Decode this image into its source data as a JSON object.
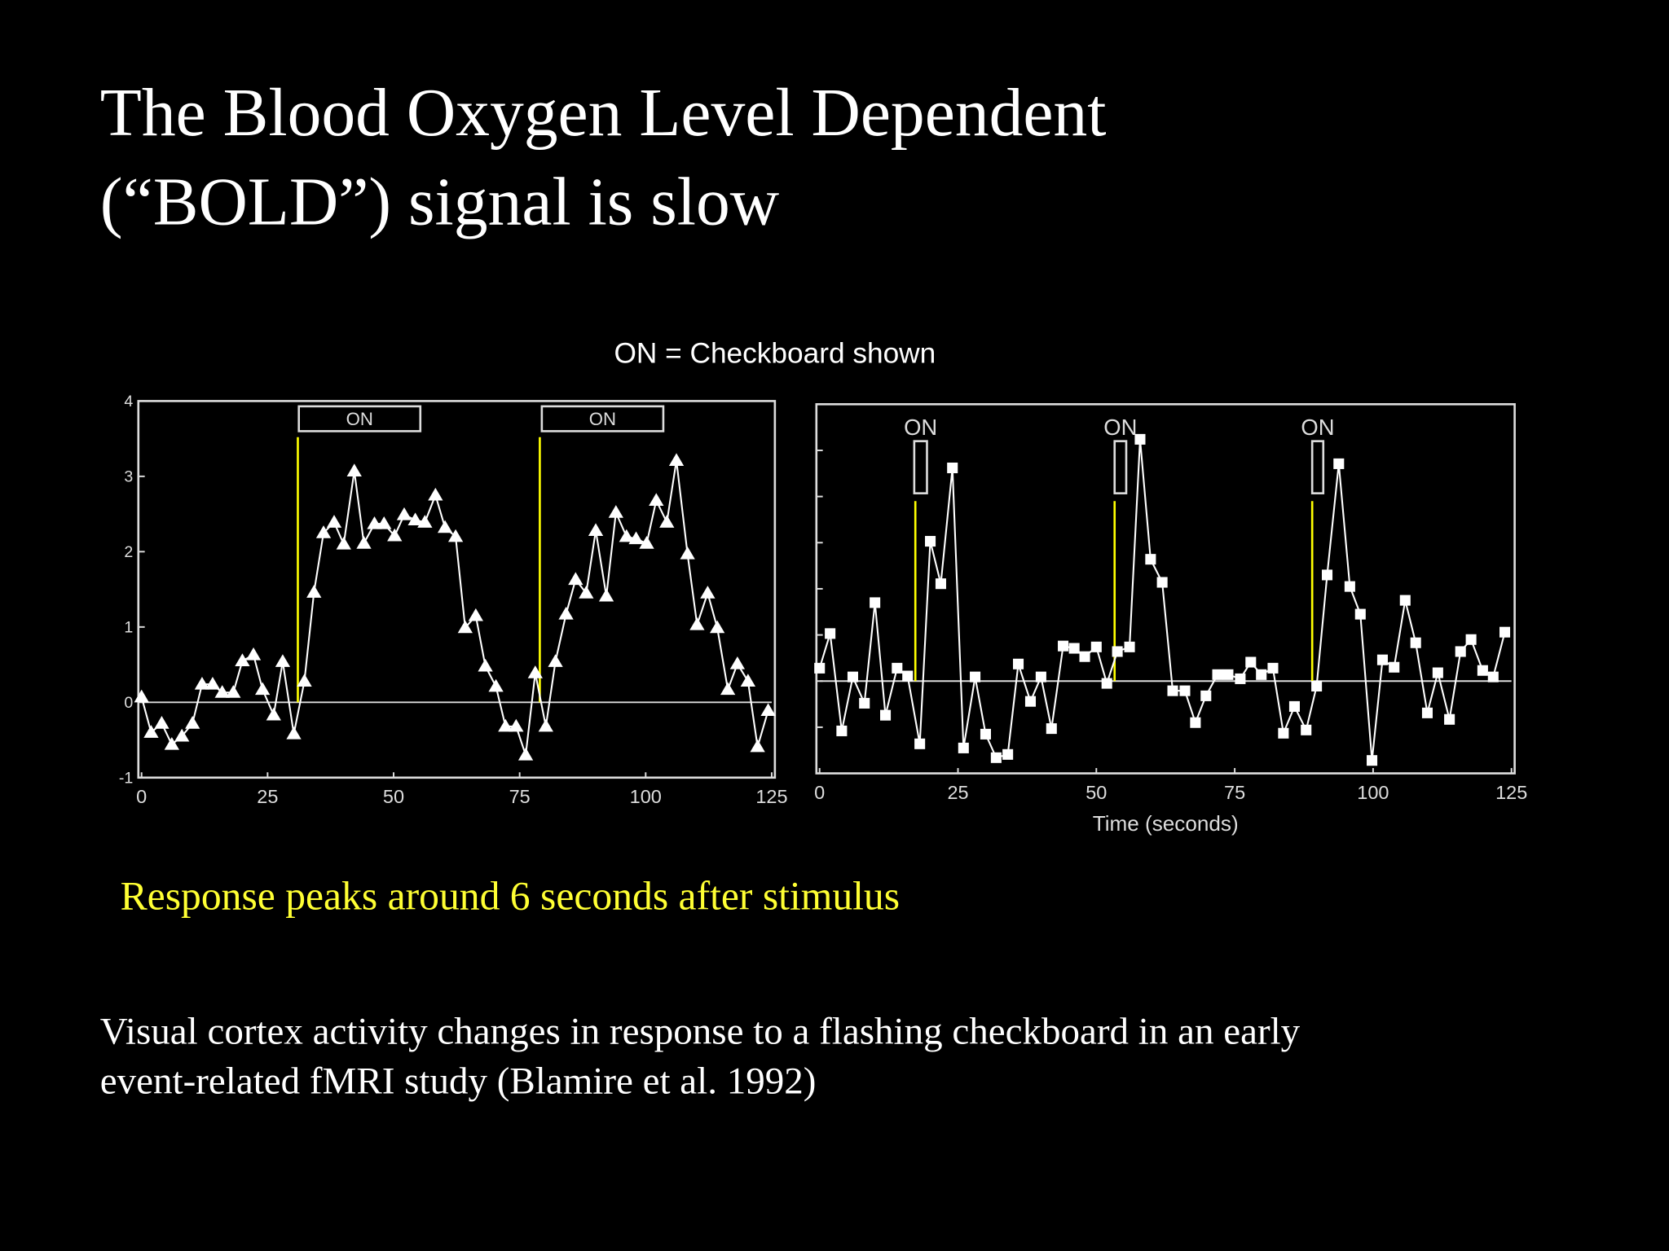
{
  "slide": {
    "title": [
      "The Blood Oxygen Level Dependent",
      "(“BOLD”) signal is slow"
    ],
    "note": "ON = Checkboard shown",
    "caption": "Response peaks around 6 seconds after stimulus",
    "footnote": [
      "Visual cortex activity changes in response to a flashing checkboard in an early",
      "event-related fMRI study (Blamire et al. 1992)"
    ]
  },
  "chart_data": [
    {
      "type": "line",
      "marker": "triangle",
      "color": "#ffffff",
      "x": [
        0,
        1.9,
        4,
        6,
        8,
        10.1,
        12,
        14.1,
        16,
        18.2,
        20,
        22.2,
        24,
        26.2,
        28,
        30.2,
        32.3,
        34.2,
        36.1,
        38.2,
        40.1,
        42.2,
        44.1,
        46.2,
        48.1,
        50.2,
        52.1,
        54.3,
        56.2,
        58.3,
        60.2,
        62.3,
        64.2,
        66.3,
        68.2,
        70.3,
        72.2,
        74.3,
        76.2,
        78.1,
        80.2,
        82.1,
        84.2,
        86.1,
        88.2,
        90.1,
        92.2,
        94.1,
        96.2,
        98.1,
        100.2,
        102.1,
        104.2,
        106.1,
        108.3,
        110.2,
        112.3,
        114.2,
        116.3,
        118.2,
        120.3,
        122.2,
        124.3
      ],
      "values": [
        0.07,
        -0.4,
        -0.28,
        -0.56,
        -0.45,
        -0.28,
        0.24,
        0.24,
        0.13,
        0.13,
        0.55,
        0.63,
        0.17,
        -0.17,
        0.54,
        -0.42,
        0.28,
        1.46,
        2.25,
        2.39,
        2.1,
        3.07,
        2.11,
        2.37,
        2.37,
        2.21,
        2.49,
        2.42,
        2.39,
        2.75,
        2.32,
        2.2,
        0.99,
        1.15,
        0.48,
        0.21,
        -0.32,
        -0.32,
        -0.7,
        0.39,
        -0.32,
        0.54,
        1.17,
        1.63,
        1.45,
        2.28,
        1.41,
        2.52,
        2.2,
        2.17,
        2.11,
        2.68,
        2.39,
        3.21,
        1.97,
        1.03,
        1.45,
        0.99,
        0.17,
        0.51,
        0.28,
        -0.59,
        -0.11
      ],
      "xlim": [
        0,
        125
      ],
      "ylim": [
        -1,
        4
      ],
      "xticks": [
        0,
        25,
        50,
        75,
        100,
        125
      ],
      "yticks": [
        -1,
        0,
        1,
        2,
        3,
        4
      ],
      "zero_line": true,
      "stimulus_color": "#ffff00",
      "stimuli": [
        {
          "x": 31,
          "top": 3.52
        },
        {
          "x": 79,
          "top": 3.52
        }
      ],
      "annotations": [
        {
          "label": "ON",
          "x0": 31.2,
          "x1": 55.3,
          "y0": 3.6,
          "y1": 3.93,
          "label_position": "inside"
        },
        {
          "label": "ON",
          "x0": 79.4,
          "x1": 103.5,
          "y0": 3.6,
          "y1": 3.93,
          "label_position": "inside"
        }
      ]
    },
    {
      "type": "line",
      "marker": "square",
      "color": "#ffffff",
      "x": [
        0,
        1.9,
        4,
        6,
        8.1,
        10,
        11.9,
        14,
        15.9,
        18.1,
        20,
        21.9,
        24,
        26,
        28.1,
        30,
        31.9,
        34,
        35.9,
        38.1,
        40,
        41.9,
        44,
        46,
        47.9,
        50,
        51.9,
        53.8,
        56,
        57.9,
        59.8,
        61.9,
        63.8,
        66,
        67.9,
        69.8,
        71.9,
        73.8,
        76,
        77.9,
        79.8,
        81.9,
        83.8,
        85.8,
        87.9,
        89.8,
        91.7,
        93.8,
        95.8,
        97.7,
        99.8,
        101.7,
        103.8,
        105.8,
        107.7,
        109.8,
        111.7,
        113.8,
        115.8,
        117.7,
        119.8,
        121.7,
        123.8
      ],
      "values": [
        0.28,
        1.03,
        -1.08,
        0.09,
        -0.48,
        1.7,
        -0.74,
        0.28,
        0.11,
        -1.36,
        3.03,
        2.11,
        4.62,
        -1.45,
        0.09,
        -1.15,
        -1.66,
        -1.59,
        0.37,
        -0.44,
        0.09,
        -1.03,
        0.76,
        0.71,
        0.53,
        0.74,
        -0.05,
        0.64,
        0.74,
        5.24,
        2.64,
        2.14,
        -0.21,
        -0.21,
        -0.9,
        -0.32,
        0.14,
        0.14,
        0.05,
        0.41,
        0.14,
        0.28,
        -1.13,
        -0.55,
        -1.06,
        -0.11,
        2.3,
        4.71,
        2.05,
        1.45,
        -1.72,
        0.46,
        0.3,
        1.75,
        0.83,
        -0.69,
        0.18,
        -0.83,
        0.64,
        0.9,
        0.23,
        0.09,
        1.06
      ],
      "xlim": [
        0,
        125
      ],
      "ylim": [
        -2,
        6
      ],
      "xticks": [
        0,
        25,
        50,
        75,
        100,
        125
      ],
      "yticks": [
        -2,
        -1,
        0,
        1,
        2,
        3,
        4,
        5,
        6
      ],
      "ytick_labels": false,
      "x_label": "Time (seconds)",
      "zero_line": true,
      "stimulus_color": "#ffff00",
      "stimuli": [
        {
          "x": 17.3,
          "top": 3.9
        },
        {
          "x": 53.3,
          "top": 3.9
        },
        {
          "x": 89,
          "top": 3.9
        }
      ],
      "annotations": [
        {
          "label": "ON",
          "x0": 17.1,
          "x1": 19.4,
          "y0": 4.07,
          "y1": 5.2,
          "label_position": "above"
        },
        {
          "label": "ON",
          "x0": 53.3,
          "x1": 55.4,
          "y0": 4.07,
          "y1": 5.2,
          "label_position": "above"
        },
        {
          "label": "ON",
          "x0": 89.0,
          "x1": 91.0,
          "y0": 4.07,
          "y1": 5.2,
          "label_position": "above"
        }
      ]
    }
  ]
}
